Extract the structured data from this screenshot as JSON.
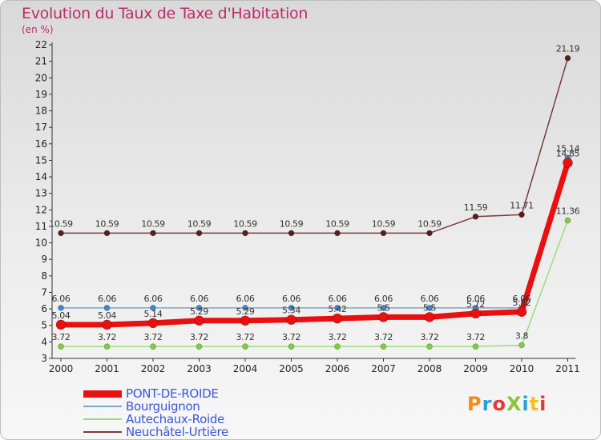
{
  "title": "Evolution du Taux de Taxe d'Habitation",
  "unit": "(en %)",
  "logo": {
    "text": "ProXiti",
    "colors": [
      "#f08c1a",
      "#2a9fd8",
      "#e03a3a",
      "#8bc43f",
      "#2a9fd8",
      "#f2c21b",
      "#e03a3a"
    ]
  },
  "chart_data": {
    "type": "line",
    "categories": [
      "2000",
      "2001",
      "2002",
      "2003",
      "2004",
      "2005",
      "2006",
      "2007",
      "2008",
      "2009",
      "2010",
      "2011"
    ],
    "ylim": [
      3,
      22
    ],
    "yticks": [
      3,
      4,
      5,
      6,
      7,
      8,
      9,
      10,
      11,
      12,
      13,
      14,
      15,
      16,
      17,
      18,
      19,
      20,
      21,
      22
    ],
    "grid": false,
    "legend_position": "bottom-left",
    "series": [
      {
        "name": "PONT-DE-ROIDE",
        "color": "#e81010",
        "marker": "#e81010",
        "width": 7,
        "radius": 6,
        "values": [
          5.04,
          5.04,
          5.14,
          5.29,
          5.29,
          5.34,
          5.42,
          5.5,
          5.5,
          5.72,
          5.82,
          14.85
        ],
        "labels": [
          "5.04",
          "5.04",
          "5.14",
          "5.29",
          "5.29",
          "5.34",
          "5.42",
          "5.5",
          "5.5",
          "5.72",
          "5.82",
          "14.85"
        ]
      },
      {
        "name": "Bourguignon",
        "color": "#7aa6c8",
        "marker": "#3f87cc",
        "width": 1.5,
        "radius": 3.5,
        "values": [
          6.06,
          6.06,
          6.06,
          6.06,
          6.06,
          6.06,
          6.06,
          6.06,
          6.06,
          6.06,
          6.06,
          15.14
        ],
        "labels": [
          "6.06",
          "6.06",
          "6.06",
          "6.06",
          "6.06",
          "6.06",
          "6.06",
          "6.06",
          "6.06",
          "6.06",
          "6.06",
          "15.14"
        ]
      },
      {
        "name": "Autechaux-Roide",
        "color": "#9bdc7c",
        "marker": "#7ccf3d",
        "width": 1.5,
        "radius": 3.5,
        "values": [
          3.72,
          3.72,
          3.72,
          3.72,
          3.72,
          3.72,
          3.72,
          3.72,
          3.72,
          3.72,
          3.8,
          11.36
        ],
        "labels": [
          "3.72",
          "3.72",
          "3.72",
          "3.72",
          "3.72",
          "3.72",
          "3.72",
          "3.72",
          "3.72",
          "3.72",
          "3.8",
          "11.36"
        ]
      },
      {
        "name": "Neuchâtel-Urtière",
        "color": "#7a3b3b",
        "marker": "#5a1e1e",
        "width": 1.5,
        "radius": 3.5,
        "values": [
          10.59,
          10.59,
          10.59,
          10.59,
          10.59,
          10.59,
          10.59,
          10.59,
          10.59,
          11.59,
          11.71,
          21.19
        ],
        "labels": [
          "10.59",
          "10.59",
          "10.59",
          "10.59",
          "10.59",
          "10.59",
          "10.59",
          "10.59",
          "10.59",
          "11.59",
          "11.71",
          "21.19"
        ]
      }
    ]
  }
}
